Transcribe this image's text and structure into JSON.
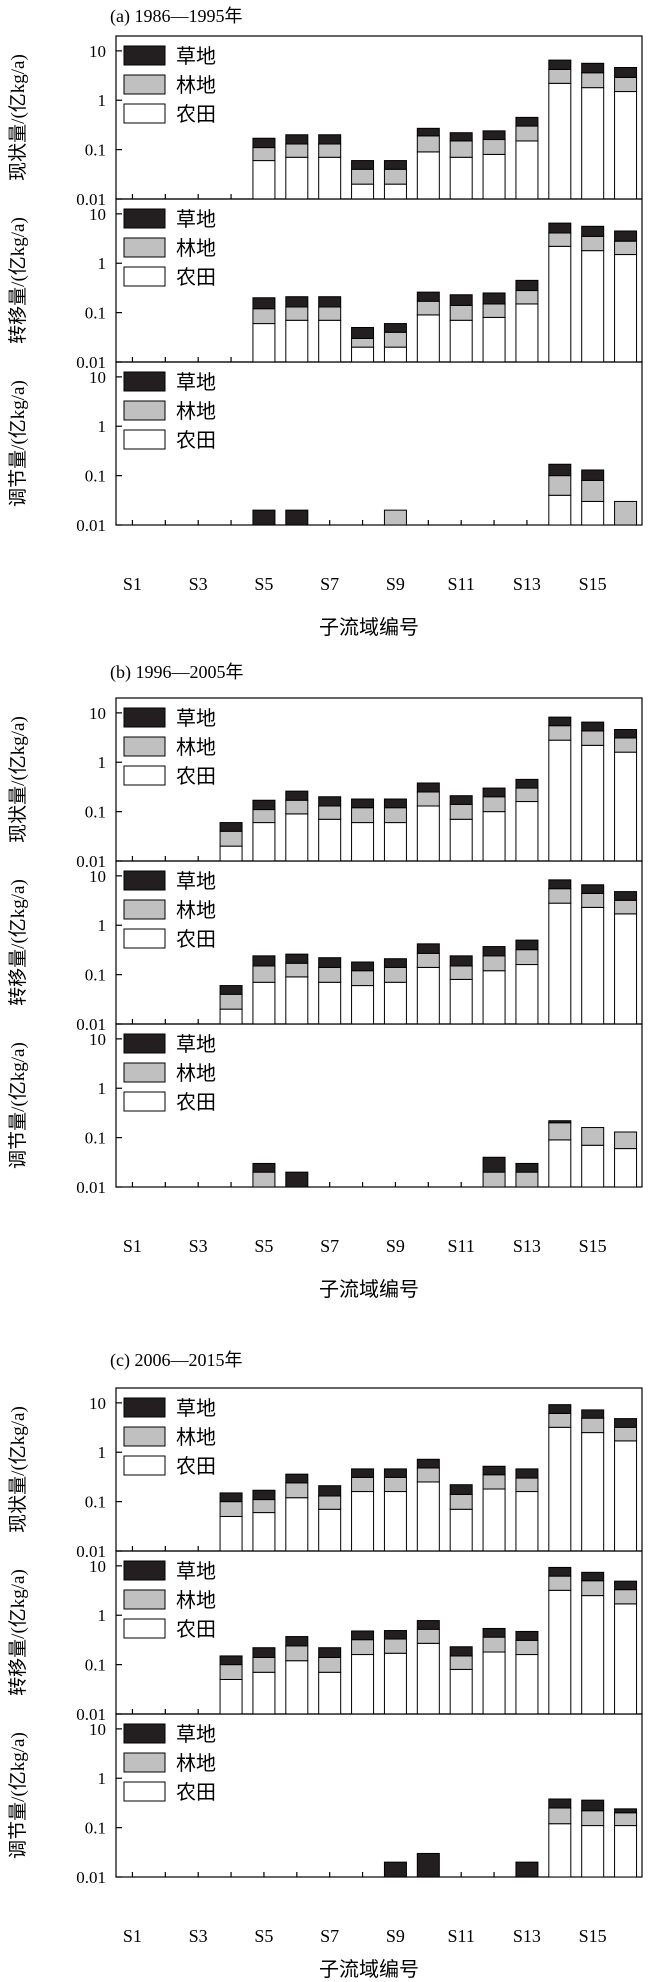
{
  "colors": {
    "grass": "#231f20",
    "forest": "#c0c0c0",
    "farm": "#ffffff",
    "axis": "#000000"
  },
  "legend": [
    {
      "key": "grass",
      "label": "草地"
    },
    {
      "key": "forest",
      "label": "林地"
    },
    {
      "key": "farm",
      "label": "农田"
    }
  ],
  "chart_data": {
    "type": "bar",
    "stacked": true,
    "y_scale": "log",
    "ylim": [
      0.01,
      20
    ],
    "y_ticks": [
      "0.01",
      "0.1",
      "1",
      "10"
    ],
    "categories": [
      "S1",
      "S2",
      "S3",
      "S4",
      "S5",
      "S6",
      "S7",
      "S8",
      "S9",
      "S10",
      "S11",
      "S12",
      "S13",
      "S14",
      "S15",
      "S16"
    ],
    "x_tick_labels": [
      "S1",
      "S3",
      "S5",
      "S7",
      "S9",
      "S11",
      "S13",
      "S15"
    ],
    "xlabel": "子流域编号",
    "groups": [
      {
        "title": "(a) 1986—1995年",
        "panels": [
          {
            "ylabel": "现状量/(亿kg/a)",
            "series": [
              {
                "name": "农田",
                "values": [
                  0,
                  0,
                  0,
                  0,
                  0.06,
                  0.07,
                  0.07,
                  0.02,
                  0.02,
                  0.09,
                  0.07,
                  0.08,
                  0.15,
                  2.2,
                  1.8,
                  1.5
                ]
              },
              {
                "name": "林地",
                "values": [
                  0,
                  0,
                  0,
                  0,
                  0.11,
                  0.13,
                  0.13,
                  0.04,
                  0.04,
                  0.19,
                  0.15,
                  0.16,
                  0.3,
                  4.2,
                  3.6,
                  2.9
                ]
              },
              {
                "name": "草地",
                "values": [
                  0,
                  0,
                  0,
                  0,
                  0.17,
                  0.2,
                  0.2,
                  0.06,
                  0.06,
                  0.27,
                  0.22,
                  0.24,
                  0.45,
                  6.5,
                  5.6,
                  4.6
                ]
              }
            ]
          },
          {
            "ylabel": "转移量/(亿kg/a)",
            "series": [
              {
                "name": "农田",
                "values": [
                  0,
                  0,
                  0,
                  0,
                  0.06,
                  0.07,
                  0.07,
                  0.02,
                  0.02,
                  0.09,
                  0.07,
                  0.08,
                  0.15,
                  2.2,
                  1.8,
                  1.5
                ]
              },
              {
                "name": "林地",
                "values": [
                  0,
                  0,
                  0,
                  0,
                  0.12,
                  0.13,
                  0.13,
                  0.03,
                  0.04,
                  0.17,
                  0.14,
                  0.15,
                  0.28,
                  4.1,
                  3.5,
                  2.8
                ]
              },
              {
                "name": "草地",
                "values": [
                  0,
                  0,
                  0,
                  0,
                  0.2,
                  0.21,
                  0.21,
                  0.05,
                  0.06,
                  0.26,
                  0.23,
                  0.25,
                  0.45,
                  6.5,
                  5.6,
                  4.5
                ]
              }
            ]
          },
          {
            "ylabel": "调节量/(亿kg/a)",
            "series": [
              {
                "name": "农田",
                "values": [
                  0,
                  0,
                  0,
                  0,
                  0,
                  0,
                  0,
                  0,
                  0,
                  0,
                  0,
                  0,
                  0,
                  0.04,
                  0.03,
                  0
                ]
              },
              {
                "name": "林地",
                "values": [
                  0,
                  0,
                  0,
                  0,
                  0,
                  0,
                  0,
                  0,
                  0.02,
                  0,
                  0,
                  0,
                  0,
                  0.1,
                  0.08,
                  0.03
                ]
              },
              {
                "name": "草地",
                "values": [
                  0,
                  0,
                  0,
                  0,
                  0.02,
                  0.02,
                  0,
                  0,
                  0,
                  0,
                  0,
                  0,
                  0,
                  0.17,
                  0.13,
                  0
                ]
              }
            ]
          }
        ]
      },
      {
        "title": "(b) 1996—2005年",
        "panels": [
          {
            "ylabel": "现状量/(亿kg/a)",
            "series": [
              {
                "name": "农田",
                "values": [
                  0,
                  0,
                  0,
                  0.02,
                  0.06,
                  0.09,
                  0.07,
                  0.06,
                  0.06,
                  0.13,
                  0.07,
                  0.1,
                  0.16,
                  2.8,
                  2.2,
                  1.6
                ]
              },
              {
                "name": "林地",
                "values": [
                  0,
                  0,
                  0,
                  0.04,
                  0.11,
                  0.17,
                  0.13,
                  0.12,
                  0.12,
                  0.25,
                  0.14,
                  0.2,
                  0.3,
                  5.5,
                  4.3,
                  3.1
                ]
              },
              {
                "name": "草地",
                "values": [
                  0,
                  0,
                  0,
                  0.06,
                  0.17,
                  0.26,
                  0.2,
                  0.18,
                  0.18,
                  0.38,
                  0.21,
                  0.3,
                  0.45,
                  8.2,
                  6.5,
                  4.6
                ]
              }
            ]
          },
          {
            "ylabel": "转移量/(亿kg/a)",
            "series": [
              {
                "name": "农田",
                "values": [
                  0,
                  0,
                  0,
                  0.02,
                  0.07,
                  0.09,
                  0.07,
                  0.06,
                  0.07,
                  0.14,
                  0.08,
                  0.12,
                  0.16,
                  2.8,
                  2.3,
                  1.7
                ]
              },
              {
                "name": "林地",
                "values": [
                  0,
                  0,
                  0,
                  0.04,
                  0.15,
                  0.17,
                  0.14,
                  0.12,
                  0.14,
                  0.27,
                  0.15,
                  0.24,
                  0.32,
                  5.5,
                  4.4,
                  3.2
                ]
              },
              {
                "name": "草地",
                "values": [
                  0,
                  0,
                  0,
                  0.06,
                  0.24,
                  0.26,
                  0.22,
                  0.18,
                  0.21,
                  0.42,
                  0.24,
                  0.37,
                  0.5,
                  8.3,
                  6.6,
                  4.8
                ]
              }
            ]
          },
          {
            "ylabel": "调节量/(亿kg/a)",
            "series": [
              {
                "name": "农田",
                "values": [
                  0,
                  0,
                  0,
                  0,
                  0.01,
                  0,
                  0,
                  0,
                  0,
                  0,
                  0,
                  0.01,
                  0.01,
                  0.09,
                  0.07,
                  0.06
                ]
              },
              {
                "name": "林地",
                "values": [
                  0,
                  0,
                  0,
                  0,
                  0.02,
                  0,
                  0,
                  0,
                  0,
                  0,
                  0,
                  0.02,
                  0.02,
                  0.2,
                  0.16,
                  0.13
                ]
              },
              {
                "name": "草地",
                "values": [
                  0,
                  0,
                  0,
                  0,
                  0.03,
                  0.02,
                  0,
                  0,
                  0,
                  0,
                  0,
                  0.04,
                  0.03,
                  0.22,
                  0,
                  0
                ]
              }
            ]
          }
        ]
      },
      {
        "title": "(c) 2006—2015年",
        "panels": [
          {
            "ylabel": "现状量/(亿kg/a)",
            "series": [
              {
                "name": "农田",
                "values": [
                  0,
                  0,
                  0,
                  0.05,
                  0.06,
                  0.12,
                  0.07,
                  0.16,
                  0.16,
                  0.25,
                  0.07,
                  0.18,
                  0.16,
                  3.2,
                  2.5,
                  1.7
                ]
              },
              {
                "name": "林地",
                "values": [
                  0,
                  0,
                  0,
                  0.1,
                  0.11,
                  0.24,
                  0.13,
                  0.31,
                  0.31,
                  0.48,
                  0.14,
                  0.35,
                  0.3,
                  6.1,
                  4.9,
                  3.2
                ]
              },
              {
                "name": "草地",
                "values": [
                  0,
                  0,
                  0,
                  0.15,
                  0.17,
                  0.36,
                  0.21,
                  0.46,
                  0.46,
                  0.72,
                  0.22,
                  0.52,
                  0.46,
                  9.2,
                  7.2,
                  4.8
                ]
              }
            ]
          },
          {
            "ylabel": "转移量/(亿kg/a)",
            "series": [
              {
                "name": "农田",
                "values": [
                  0,
                  0,
                  0,
                  0.05,
                  0.07,
                  0.12,
                  0.07,
                  0.16,
                  0.17,
                  0.27,
                  0.08,
                  0.18,
                  0.16,
                  3.2,
                  2.5,
                  1.7
                ]
              },
              {
                "name": "林地",
                "values": [
                  0,
                  0,
                  0,
                  0.1,
                  0.14,
                  0.24,
                  0.14,
                  0.32,
                  0.33,
                  0.52,
                  0.15,
                  0.36,
                  0.31,
                  6.2,
                  5,
                  3.3
                ]
              },
              {
                "name": "草地",
                "values": [
                  0,
                  0,
                  0,
                  0.15,
                  0.22,
                  0.37,
                  0.22,
                  0.48,
                  0.49,
                  0.78,
                  0.23,
                  0.54,
                  0.47,
                  9.3,
                  7.4,
                  4.9
                ]
              }
            ]
          },
          {
            "ylabel": "调节量/(亿kg/a)",
            "series": [
              {
                "name": "农田",
                "values": [
                  0,
                  0,
                  0,
                  0,
                  0,
                  0,
                  0,
                  0,
                  0,
                  0,
                  0,
                  0,
                  0,
                  0.12,
                  0.11,
                  0.11
                ]
              },
              {
                "name": "林地",
                "values": [
                  0,
                  0,
                  0,
                  0,
                  0,
                  0,
                  0,
                  0,
                  0,
                  0,
                  0,
                  0,
                  0,
                  0.25,
                  0.22,
                  0.2
                ]
              },
              {
                "name": "草地",
                "values": [
                  0,
                  0,
                  0,
                  0,
                  0,
                  0,
                  0,
                  0,
                  0.02,
                  0.03,
                  0,
                  0,
                  0.02,
                  0.38,
                  0.36,
                  0.24
                ]
              }
            ]
          }
        ]
      }
    ]
  }
}
